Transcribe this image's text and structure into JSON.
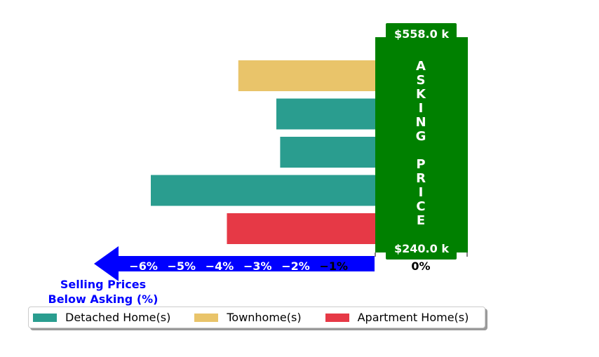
{
  "chart_data": {
    "type": "bar",
    "orientation": "horizontal",
    "bars": [
      {
        "category": "Townhome(s)",
        "value": -3.6
      },
      {
        "category": "Detached Home(s)",
        "value": -2.6
      },
      {
        "category": "Detached Home(s)",
        "value": -2.5
      },
      {
        "category": "Detached Home(s)",
        "value": -5.9
      },
      {
        "category": "Apartment Home(s)",
        "value": -3.9
      }
    ],
    "xlim": [
      -6.9,
      1.0
    ],
    "x_ticks": [
      {
        "value": -6,
        "label": "−6%"
      },
      {
        "value": -5,
        "label": "−5%"
      },
      {
        "value": -4,
        "label": "−4%"
      },
      {
        "value": -3,
        "label": "−3%"
      },
      {
        "value": -2,
        "label": "−2%"
      },
      {
        "value": -1,
        "label": "−1%"
      },
      {
        "value": 0,
        "label": "0%"
      }
    ],
    "xlabel_line1": "Selling Prices",
    "xlabel_line2": "Below Asking (%)",
    "asking_price_panel": {
      "label_word1": "ASKING",
      "label_word2": "PRICE",
      "top_value": "$558.0 k",
      "bottom_value": "$240.0 k",
      "color": "#008000"
    },
    "arrow_color": "#0000ff",
    "legend": {
      "placement": "bottom",
      "entries": [
        {
          "name": "Detached Home(s)",
          "color": "#2a9d8f"
        },
        {
          "name": "Townhome(s)",
          "color": "#e9c46a"
        },
        {
          "name": "Apartment Home(s)",
          "color": "#e63946"
        }
      ]
    },
    "grid": false
  }
}
